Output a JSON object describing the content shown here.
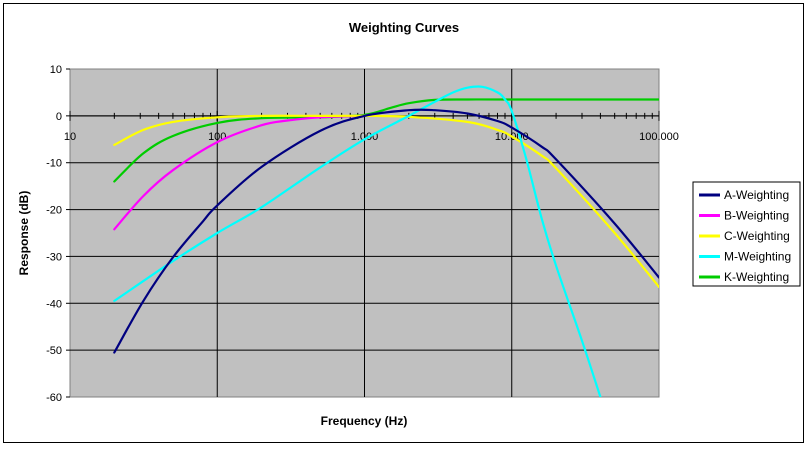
{
  "chart_data": {
    "type": "line",
    "title": "Weighting Curves",
    "xlabel": "Frequency (Hz)",
    "ylabel": "Response (dB)",
    "x_scale": "log",
    "xlim": [
      10,
      100000
    ],
    "ylim": [
      -60,
      10
    ],
    "x_tick_labels": [
      "10",
      "100",
      "1.000",
      "10.000",
      "100.000"
    ],
    "x_tick_values": [
      10,
      100,
      1000,
      10000,
      100000
    ],
    "y_tick_values": [
      10,
      0,
      -10,
      -20,
      -30,
      -40,
      -50,
      -60
    ],
    "grid": true,
    "legend": "right",
    "plot_background": "#c0c0c0",
    "series": [
      {
        "name": "A-Weighting",
        "color": "#000080",
        "x": [
          20,
          31.5,
          50,
          80,
          100,
          200,
          500,
          1000,
          2000,
          3000,
          5000,
          8000,
          10000,
          16000,
          20000,
          50000,
          100000
        ],
        "y": [
          -50.5,
          -39.5,
          -30.2,
          -22.5,
          -19.1,
          -10.9,
          -3.2,
          0,
          1.2,
          1.2,
          0.5,
          -1.1,
          -2.5,
          -6.6,
          -9.3,
          -23,
          -34.5
        ]
      },
      {
        "name": "B-Weighting",
        "color": "#ff00ff",
        "x": [
          20,
          31.5,
          50,
          100,
          200,
          300,
          500,
          1000
        ],
        "y": [
          -24.2,
          -17.1,
          -11.6,
          -5.6,
          -2.0,
          -1.0,
          -0.3,
          0
        ]
      },
      {
        "name": "C-Weighting",
        "color": "#ffff00",
        "x": [
          20,
          31.5,
          50,
          100,
          200,
          500,
          1000,
          2000,
          5000,
          8000,
          10000,
          16000,
          20000,
          50000,
          100000
        ],
        "y": [
          -6.2,
          -3.0,
          -1.3,
          -0.3,
          0,
          0,
          0,
          -0.2,
          -1.3,
          -3.0,
          -4.4,
          -8.5,
          -11.2,
          -25,
          -36.5
        ]
      },
      {
        "name": "M-Weighting",
        "color": "#00ffff",
        "x": [
          20,
          50,
          100,
          200,
          500,
          1000,
          2000,
          3000,
          4000,
          5000,
          6300,
          8000,
          9000,
          10000,
          12500,
          16000,
          20000,
          30000,
          40000
        ],
        "y": [
          -39.5,
          -31,
          -25,
          -19.5,
          -11,
          -5,
          0,
          3,
          5,
          6,
          6.2,
          5,
          3.5,
          1,
          -9,
          -22,
          -32,
          -48,
          -60
        ]
      },
      {
        "name": "K-Weighting",
        "color": "#00cc00",
        "x": [
          20,
          31.5,
          50,
          100,
          200,
          500,
          1000,
          1500,
          2000,
          3000,
          5000,
          10000,
          100000
        ],
        "y": [
          -14,
          -8,
          -4.3,
          -1.5,
          -0.5,
          -0.3,
          0.2,
          1.7,
          2.7,
          3.4,
          3.5,
          3.5,
          3.5
        ]
      }
    ]
  }
}
